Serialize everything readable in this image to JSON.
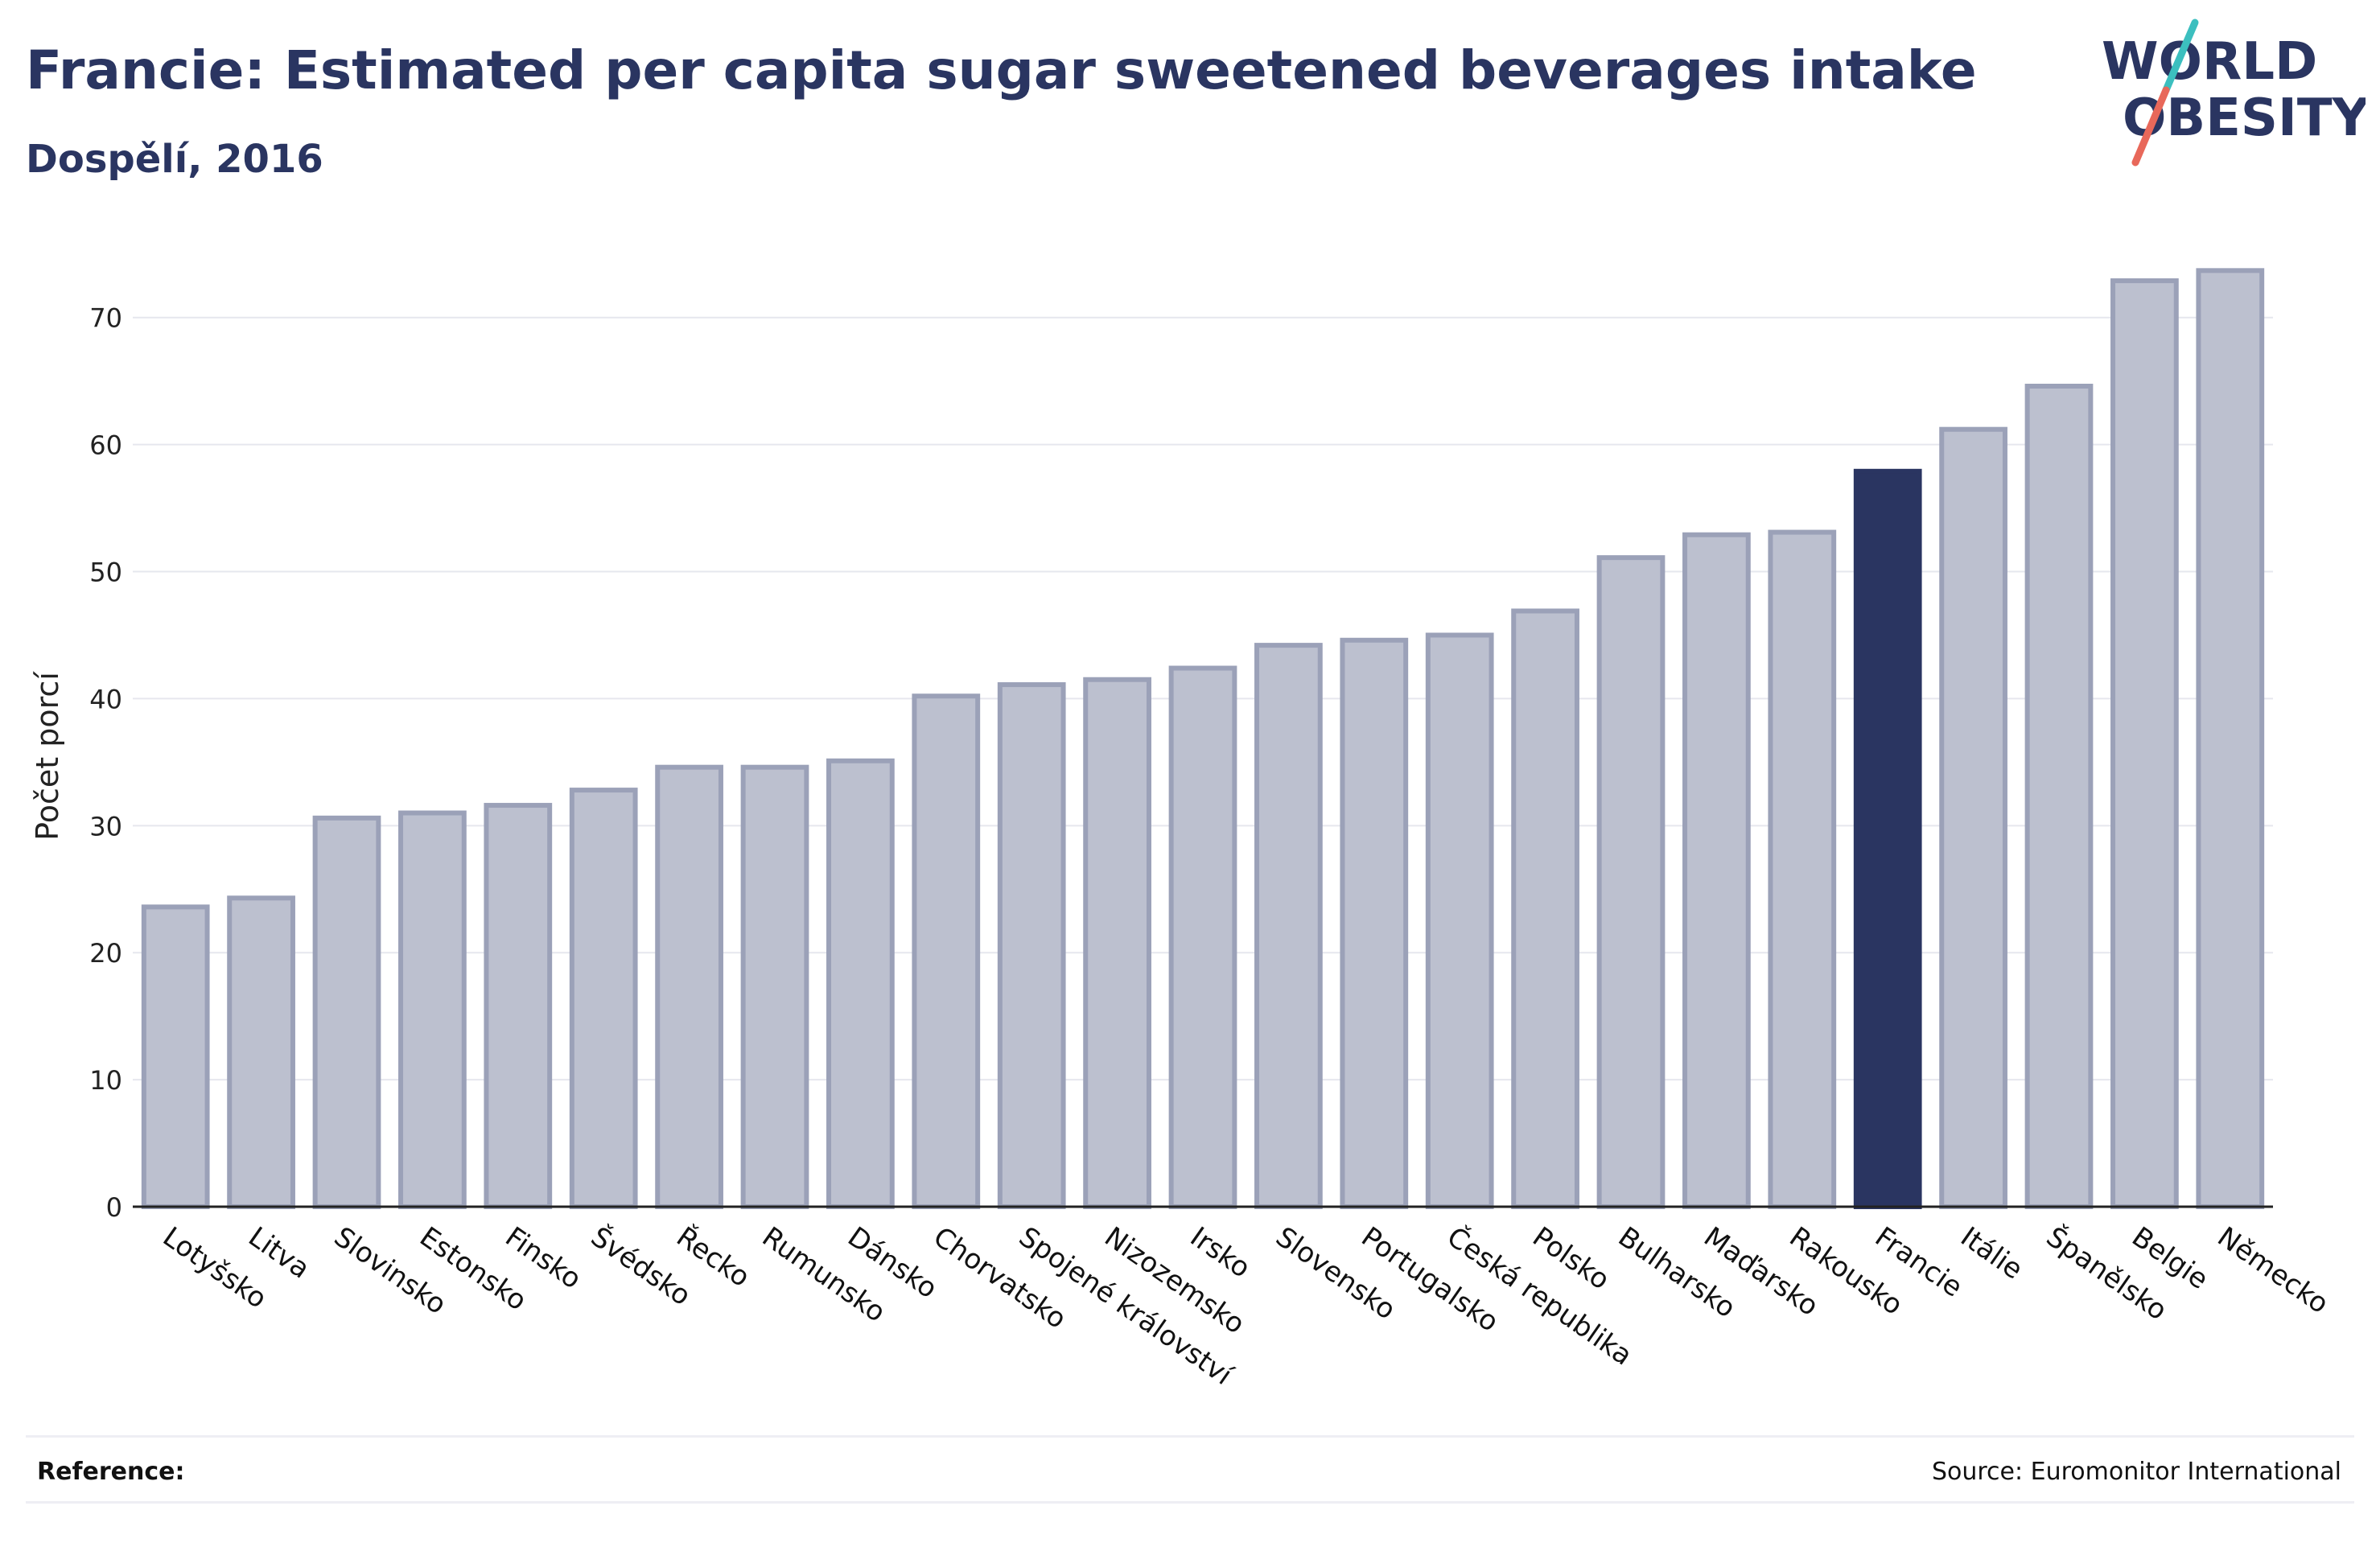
{
  "header": {
    "title": "Francie: Estimated per capita sugar sweetened beverages intake",
    "subtitle": "Dospělí, 2016"
  },
  "logo": {
    "line1": "WORLD",
    "line2": "OBESITY"
  },
  "footer": {
    "reference_label": "Reference:",
    "source": "Source: Euromonitor International"
  },
  "colors": {
    "title": "#2a3561",
    "bar": "#bcc0cf",
    "bar_stroke": "#9ba1b8",
    "highlight": "#2a3561",
    "logo_accent_teal": "#3cbfbf",
    "logo_accent_red": "#e8685a"
  },
  "chart_data": {
    "type": "bar",
    "title": "Francie: Estimated per capita sugar sweetened beverages intake",
    "subtitle": "Dospělí, 2016",
    "xlabel": "",
    "ylabel": "Počet porcí",
    "ylim": [
      0,
      76
    ],
    "yticks": [
      0,
      10,
      20,
      30,
      40,
      50,
      60,
      70
    ],
    "grid": true,
    "highlight_category": "Francie",
    "categories": [
      "Lotyšsko",
      "Litva",
      "Slovinsko",
      "Estonsko",
      "Finsko",
      "Švédsko",
      "Řecko",
      "Rumunsko",
      "Dánsko",
      "Chorvatsko",
      "Spojené království",
      "Nizozemsko",
      "Irsko",
      "Slovensko",
      "Portugalsko",
      "Česká republika",
      "Polsko",
      "Bulharsko",
      "Maďarsko",
      "Rakousko",
      "Francie",
      "Itálie",
      "Španělsko",
      "Belgie",
      "Německo"
    ],
    "values": [
      23.6,
      24.3,
      30.6,
      31.0,
      31.6,
      32.8,
      34.6,
      34.6,
      35.1,
      40.2,
      41.1,
      41.5,
      42.4,
      44.2,
      44.6,
      45.0,
      46.9,
      51.1,
      52.9,
      53.1,
      57.9,
      61.2,
      64.6,
      72.9,
      73.7
    ]
  }
}
